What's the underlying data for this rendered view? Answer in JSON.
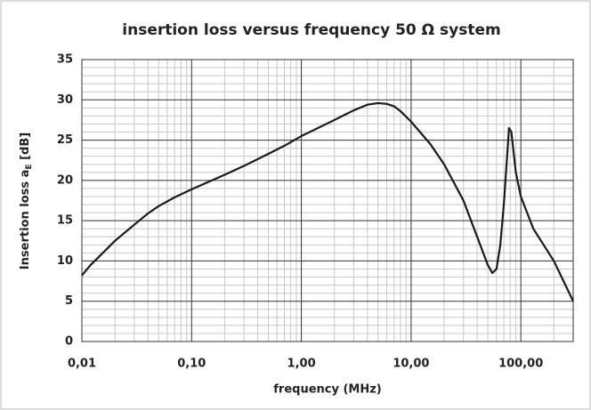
{
  "chart_data": {
    "type": "line",
    "title": "insertion loss versus frequency 50 Ω system",
    "x_label": "frequency (MHz)",
    "y_label": [
      "Insertion loss a",
      "E",
      " [dB]"
    ],
    "x": [
      0.01,
      0.012,
      0.015,
      0.02,
      0.03,
      0.04,
      0.05,
      0.07,
      0.1,
      0.2,
      0.3,
      0.5,
      0.7,
      1,
      2,
      3,
      4,
      5,
      6,
      7,
      8,
      10,
      15,
      20,
      30,
      40,
      50,
      55,
      60,
      65,
      70,
      75,
      78,
      82,
      90,
      100,
      130,
      200,
      300
    ],
    "series": [
      {
        "name": "insertion loss",
        "color": "#1a1a1a",
        "values": [
          8.2,
          9.5,
          10.8,
          12.5,
          14.5,
          15.9,
          16.8,
          17.9,
          18.9,
          20.7,
          21.8,
          23.3,
          24.3,
          25.5,
          27.5,
          28.7,
          29.4,
          29.6,
          29.5,
          29.2,
          28.6,
          27.3,
          24.5,
          22,
          17.5,
          13,
          9.5,
          8.5,
          9,
          12,
          17,
          23,
          26.5,
          26,
          21,
          18,
          14,
          10,
          5
        ]
      }
    ],
    "xlim": [
      0.01,
      300
    ],
    "xscale": "log",
    "xticks": [
      {
        "value": 0.01,
        "label": "0,01"
      },
      {
        "value": 0.1,
        "label": "0,10"
      },
      {
        "value": 1,
        "label": "1,00"
      },
      {
        "value": 10,
        "label": "10,00"
      },
      {
        "value": 100,
        "label": "100,00"
      }
    ],
    "ylim": [
      0,
      35
    ],
    "yticks": [
      0,
      5,
      10,
      15,
      20,
      25,
      30,
      35
    ],
    "grid": true,
    "minor_grid": true
  }
}
